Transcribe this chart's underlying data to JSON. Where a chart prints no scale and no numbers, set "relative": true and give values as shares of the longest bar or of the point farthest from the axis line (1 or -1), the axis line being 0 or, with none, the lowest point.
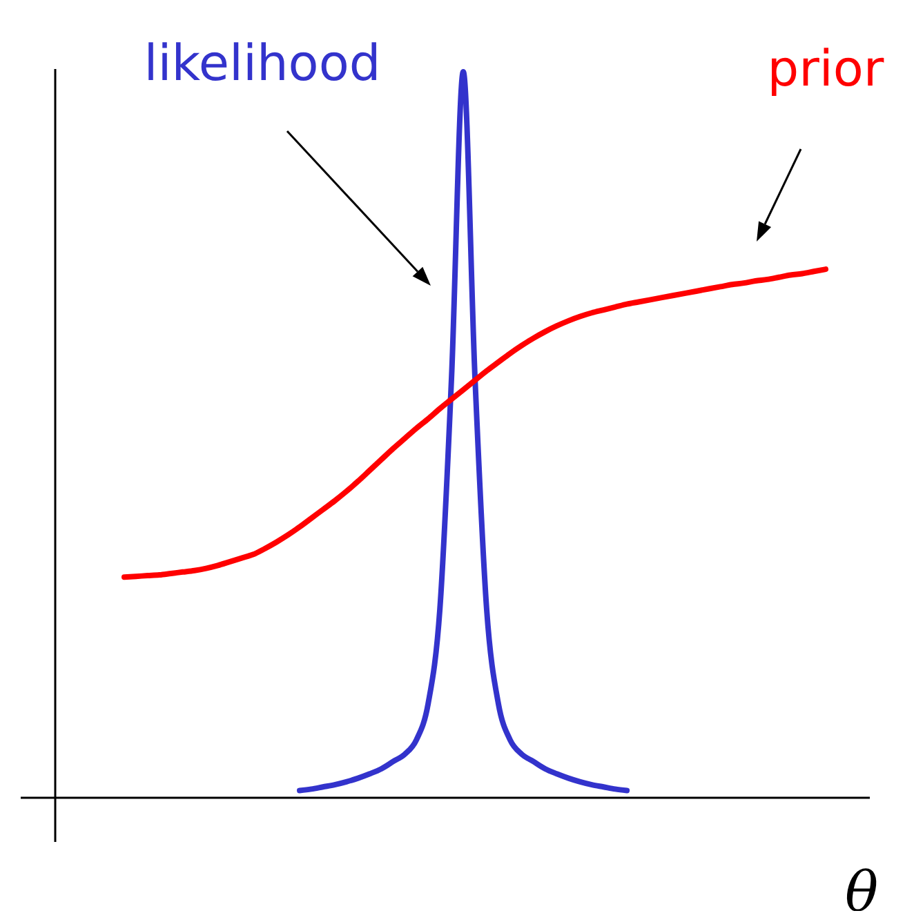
{
  "chart_data": {
    "type": "line",
    "relative": true,
    "xlabel": "θ",
    "categories": [
      null,
      null,
      null,
      null,
      null,
      null,
      null,
      null,
      null,
      null,
      null,
      null,
      null,
      null,
      null,
      null,
      null,
      null,
      null,
      null,
      null,
      null,
      null,
      null,
      null,
      null,
      null,
      null,
      null,
      null,
      null,
      null,
      null,
      null,
      null,
      null,
      null,
      null,
      null,
      null,
      null,
      null,
      null,
      null,
      null,
      null,
      null,
      null,
      null,
      null,
      null,
      null,
      null,
      null,
      null,
      null,
      null,
      null,
      null,
      null,
      null
    ],
    "series": [
      {
        "name": "likelihood",
        "color": "#3333cc",
        "values": [
          null,
          null,
          null,
          null,
          null,
          null,
          null,
          null,
          null,
          null,
          null,
          null,
          null,
          null,
          null,
          0.01,
          0.012,
          0.015,
          0.018,
          0.022,
          0.027,
          0.033,
          0.04,
          0.05,
          0.06,
          0.08,
          0.13,
          0.26,
          0.58,
          1,
          0.58,
          0.26,
          0.13,
          0.08,
          0.06,
          0.05,
          0.04,
          0.033,
          0.027,
          0.022,
          0.018,
          0.015,
          0.012,
          0.01,
          null,
          null,
          null,
          null,
          null,
          null,
          null,
          null,
          null,
          null,
          null,
          null,
          null,
          null,
          null,
          null,
          null
        ]
      },
      {
        "name": "prior",
        "color": "#ff0000",
        "values": [
          0.304,
          0.305,
          0.306,
          0.307,
          0.309,
          0.311,
          0.313,
          0.316,
          0.32,
          0.325,
          0.33,
          0.335,
          0.343,
          0.352,
          0.362,
          0.373,
          0.385,
          0.397,
          0.409,
          0.422,
          0.436,
          0.451,
          0.466,
          0.481,
          0.495,
          0.509,
          0.522,
          0.536,
          0.549,
          0.562,
          0.575,
          0.588,
          0.6,
          0.612,
          0.623,
          0.633,
          0.642,
          0.65,
          0.657,
          0.663,
          0.668,
          0.672,
          0.676,
          0.68,
          0.683,
          0.686,
          0.689,
          0.692,
          0.695,
          0.698,
          0.701,
          0.704,
          0.707,
          0.709,
          0.712,
          0.714,
          0.717,
          0.72,
          0.722,
          0.725,
          0.728
        ]
      }
    ]
  }
}
